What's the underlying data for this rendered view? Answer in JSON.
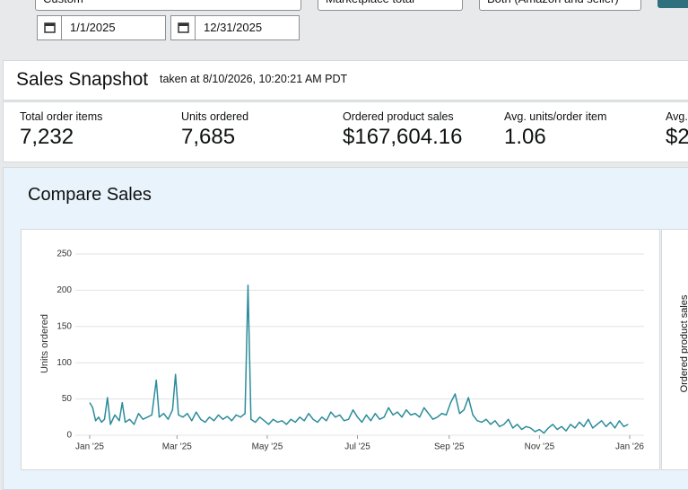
{
  "filters": {
    "date_range": "Custom",
    "marketplace": "Marketplace total",
    "fulfillment": "Both (Amazon and seller)",
    "start_date": "1/1/2025",
    "end_date": "12/31/2025"
  },
  "snapshot": {
    "title": "Sales Snapshot",
    "taken": "taken at 8/10/2026, 10:20:21 AM PDT",
    "metrics": [
      {
        "label": "Total order items",
        "value": "7,232"
      },
      {
        "label": "Units ordered",
        "value": "7,685"
      },
      {
        "label": "Ordered product sales",
        "value": "$167,604.16"
      },
      {
        "label": "Avg. units/order item",
        "value": "1.06"
      },
      {
        "label": "Avg.",
        "value": "$2"
      }
    ]
  },
  "compare": {
    "title": "Compare Sales",
    "second_chart_ylabel": "Ordered product sales"
  },
  "chart_data": {
    "type": "line",
    "ylabel": "Units ordered",
    "color": "#2b8c9b",
    "grid": true,
    "xlim": [
      0,
      365
    ],
    "ylim": [
      0,
      250
    ],
    "yticks": [
      0,
      50,
      100,
      150,
      200,
      250
    ],
    "xticks": [
      {
        "value": 0,
        "label": "Jan '25"
      },
      {
        "value": 59,
        "label": "Mar '25"
      },
      {
        "value": 120,
        "label": "May '25"
      },
      {
        "value": 181,
        "label": "Jul '25"
      },
      {
        "value": 243,
        "label": "Sep '25"
      },
      {
        "value": 304,
        "label": "Nov '25"
      },
      {
        "value": 365,
        "label": "Jan '26"
      }
    ],
    "x": [
      0,
      2,
      4,
      6,
      8,
      10,
      12,
      14,
      17,
      20,
      22,
      24,
      27,
      30,
      33,
      36,
      39,
      42,
      45,
      47,
      50,
      53,
      56,
      58,
      60,
      63,
      66,
      69,
      72,
      75,
      78,
      81,
      84,
      87,
      90,
      93,
      96,
      99,
      102,
      105,
      107,
      109,
      112,
      115,
      118,
      121,
      124,
      127,
      130,
      133,
      136,
      139,
      142,
      145,
      148,
      151,
      154,
      157,
      160,
      163,
      166,
      169,
      172,
      175,
      178,
      181,
      184,
      187,
      190,
      193,
      196,
      199,
      202,
      205,
      208,
      211,
      214,
      217,
      220,
      223,
      226,
      229,
      232,
      235,
      238,
      241,
      244,
      247,
      250,
      253,
      256,
      259,
      262,
      265,
      268,
      271,
      274,
      277,
      280,
      283,
      286,
      289,
      292,
      295,
      298,
      301,
      304,
      307,
      310,
      313,
      316,
      319,
      322,
      325,
      328,
      331,
      334,
      337,
      340,
      343,
      346,
      349,
      352,
      355,
      358,
      361,
      364
    ],
    "values": [
      45,
      38,
      20,
      25,
      18,
      22,
      52,
      15,
      28,
      20,
      45,
      18,
      22,
      15,
      30,
      22,
      25,
      28,
      76,
      25,
      30,
      22,
      35,
      84,
      28,
      25,
      30,
      20,
      32,
      22,
      18,
      25,
      20,
      28,
      22,
      26,
      20,
      28,
      25,
      30,
      207,
      22,
      18,
      25,
      20,
      15,
      22,
      18,
      20,
      15,
      22,
      18,
      25,
      20,
      30,
      22,
      18,
      25,
      20,
      32,
      25,
      28,
      20,
      22,
      35,
      25,
      18,
      28,
      20,
      30,
      22,
      25,
      38,
      28,
      32,
      25,
      35,
      28,
      30,
      25,
      38,
      30,
      22,
      25,
      30,
      28,
      45,
      57,
      30,
      35,
      52,
      28,
      20,
      18,
      22,
      15,
      20,
      12,
      15,
      22,
      10,
      15,
      8,
      12,
      10,
      5,
      8,
      3,
      10,
      15,
      8,
      12,
      6,
      15,
      10,
      18,
      12,
      22,
      10,
      15,
      20,
      12,
      18,
      10,
      20,
      12,
      15
    ]
  }
}
